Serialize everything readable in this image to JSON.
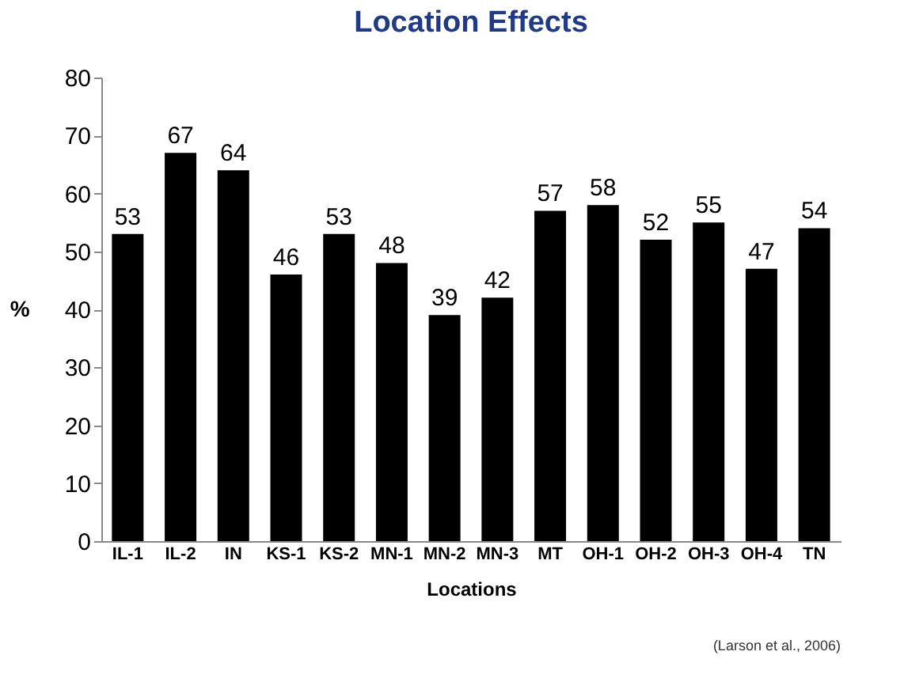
{
  "chart_data": {
    "type": "bar",
    "title": "Location Effects",
    "xlabel": "Locations",
    "ylabel": "%",
    "categories": [
      "IL-1",
      "IL-2",
      "IN",
      "KS-1",
      "KS-2",
      "MN-1",
      "MN-2",
      "MN-3",
      "MT",
      "OH-1",
      "OH-2",
      "OH-3",
      "OH-4",
      "TN"
    ],
    "values": [
      53,
      67,
      64,
      46,
      53,
      48,
      39,
      42,
      57,
      58,
      52,
      55,
      47,
      54
    ],
    "color": "#000000",
    "ylim": [
      0,
      80
    ],
    "yticks": [
      0,
      10,
      20,
      30,
      40,
      50,
      60,
      70,
      80
    ],
    "data_labels": true,
    "grid": false,
    "annotations": [
      "(Larson et al., 2006)"
    ]
  }
}
